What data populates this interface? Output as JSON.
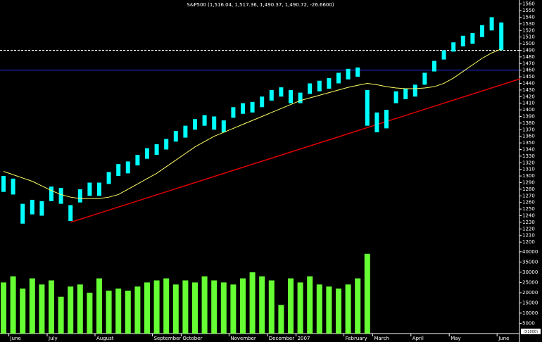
{
  "chart_data": {
    "type": "stock",
    "title": "S&P500 (1,516.04, 1,517.36, 1,490.37, 1,490.72, -26.6600)",
    "categories": [
      null,
      "June",
      null,
      null,
      null,
      "July",
      null,
      null,
      null,
      null,
      "August",
      null,
      null,
      null,
      null,
      null,
      "September",
      null,
      null,
      "October",
      null,
      null,
      null,
      null,
      "November",
      null,
      null,
      null,
      "December",
      null,
      null,
      "2007",
      null,
      null,
      null,
      null,
      "February",
      null,
      null,
      "March",
      null,
      null,
      null,
      "April",
      null,
      null,
      null,
      "May",
      null,
      null,
      null,
      null,
      "June"
    ],
    "series": [
      {
        "name": "High",
        "color": "#00ffff",
        "values": [
          1300,
          1296,
          1258,
          1264,
          1262,
          1284,
          1282,
          1256,
          1280,
          1290,
          1290,
          1306,
          1318,
          1322,
          1332,
          1342,
          1348,
          1356,
          1368,
          1376,
          1386,
          1392,
          1390,
          1384,
          1404,
          1410,
          1412,
          1420,
          1430,
          1434,
          1430,
          1426,
          1440,
          1444,
          1448,
          1456,
          1462,
          1464,
          1430,
          1396,
          1400,
          1428,
          1432,
          1438,
          1456,
          1474,
          1490,
          1502,
          1512,
          1516,
          1528,
          1540,
          1532
        ]
      },
      {
        "name": "Low",
        "color": "#00ffff",
        "values": [
          1276,
          1272,
          1228,
          1242,
          1240,
          1262,
          1258,
          1232,
          1260,
          1270,
          1270,
          1288,
          1300,
          1304,
          1316,
          1326,
          1332,
          1340,
          1352,
          1358,
          1370,
          1376,
          1370,
          1366,
          1388,
          1394,
          1396,
          1404,
          1414,
          1420,
          1410,
          1410,
          1424,
          1428,
          1432,
          1440,
          1446,
          1450,
          1376,
          1366,
          1372,
          1410,
          1416,
          1420,
          1438,
          1458,
          1476,
          1488,
          1496,
          1500,
          1510,
          1520,
          1490
        ]
      },
      {
        "name": "Moving Average",
        "color": "#ffff66",
        "values": [
          1307,
          1302,
          1297,
          1292,
          1285,
          1278,
          1272,
          1268,
          1266,
          1266,
          1266,
          1268,
          1272,
          1280,
          1288,
          1296,
          1304,
          1314,
          1324,
          1334,
          1344,
          1352,
          1360,
          1366,
          1372,
          1378,
          1384,
          1390,
          1396,
          1402,
          1408,
          1414,
          1418,
          1422,
          1426,
          1430,
          1434,
          1437,
          1440,
          1438,
          1435,
          1433,
          1432,
          1432,
          1433,
          1435,
          1440,
          1448,
          1458,
          1468,
          1478,
          1486,
          1492
        ]
      }
    ],
    "volume": {
      "color": "#66ff33",
      "values": [
        25000,
        28000,
        22000,
        27000,
        24000,
        26000,
        18000,
        23000,
        24000,
        20000,
        27000,
        21000,
        22000,
        21000,
        23000,
        25000,
        26000,
        27000,
        24000,
        26000,
        25000,
        28000,
        26000,
        25000,
        24000,
        27000,
        30000,
        28000,
        26000,
        14000,
        27000,
        25000,
        28000,
        24000,
        23000,
        22000,
        24000,
        27000,
        39000,
        null,
        null,
        null,
        null,
        null,
        null,
        null,
        null,
        null,
        null,
        null,
        null,
        null,
        null
      ],
      "ylim": [
        0,
        42000
      ],
      "yticks": [
        5000,
        10000,
        15000,
        20000,
        25000,
        30000,
        35000,
        40000
      ],
      "unit_label": "(X1000)"
    },
    "ylim": [
      1198,
      1566
    ],
    "yticks": [
      1200,
      1210,
      1220,
      1230,
      1240,
      1250,
      1260,
      1270,
      1280,
      1290,
      1300,
      1310,
      1320,
      1330,
      1340,
      1350,
      1360,
      1370,
      1380,
      1390,
      1400,
      1410,
      1420,
      1430,
      1440,
      1450,
      1460,
      1470,
      1480,
      1490,
      1500,
      1510,
      1520,
      1530,
      1540,
      1550,
      1560
    ],
    "reference_lines": [
      {
        "value": 1490,
        "color": "#ffffff",
        "style": "dashed"
      },
      {
        "value": 1460,
        "color": "#2233ff",
        "style": "solid"
      }
    ],
    "trendline": {
      "color": "#e00000",
      "x": [
        7,
        54
      ],
      "values": [
        1230,
        1447
      ]
    }
  }
}
